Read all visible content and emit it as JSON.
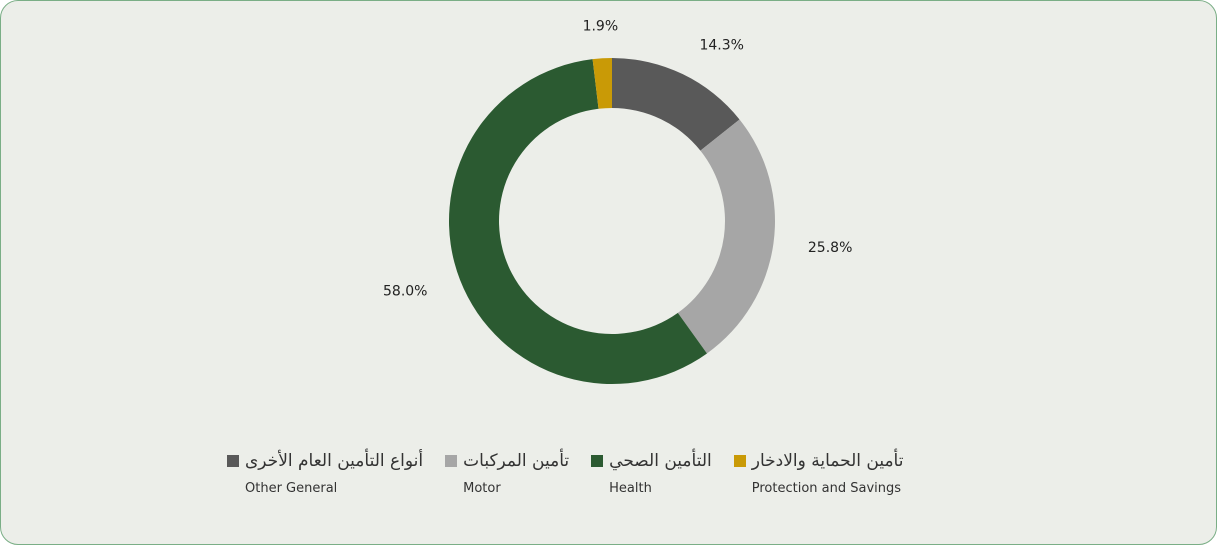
{
  "chart_data": {
    "type": "donut",
    "categories": [
      "Other General",
      "Motor",
      "Health",
      "Protection and Savings"
    ],
    "categories_ar": [
      "أنواع التأمين العام الأخرى",
      "تأمين المركبات",
      "التأمين الصحي",
      "تأمين الحماية والادخار"
    ],
    "values": [
      14.3,
      25.8,
      58.0,
      1.9
    ],
    "value_labels": [
      "14.3%",
      "25.8%",
      "58.0%",
      "1.9%"
    ],
    "colors": [
      "#595959",
      "#a6a6a6",
      "#2b5a31",
      "#c99a06"
    ]
  }
}
